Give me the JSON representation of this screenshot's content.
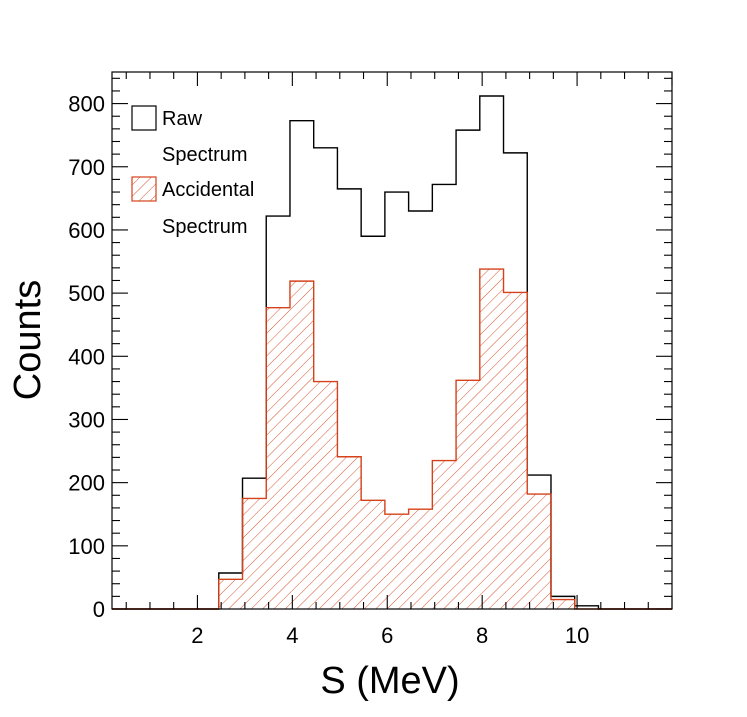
{
  "chart_data": {
    "type": "histogram",
    "xlabel": "S (MeV)",
    "ylabel": "Counts",
    "xlim": [
      0.2,
      12.0
    ],
    "ylim": [
      0,
      850
    ],
    "x_ticks": [
      2,
      4,
      6,
      8,
      10
    ],
    "y_ticks": [
      0,
      100,
      200,
      300,
      400,
      500,
      600,
      700,
      800
    ],
    "bin_edges": [
      0.2,
      0.7,
      1.2,
      1.7,
      2.2,
      2.45,
      2.95,
      3.45,
      3.95,
      4.45,
      4.95,
      5.45,
      5.95,
      6.45,
      6.95,
      7.45,
      7.95,
      8.45,
      8.95,
      9.45,
      9.95,
      10.45,
      10.95,
      11.45,
      12.0
    ],
    "series": [
      {
        "name": "Raw Spectrum",
        "color": "#000000",
        "fill": "none",
        "values": [
          0,
          0,
          0,
          0,
          0,
          57,
          207,
          622,
          773,
          730,
          665,
          590,
          660,
          630,
          672,
          758,
          812,
          722,
          212,
          20,
          5,
          0,
          0,
          0
        ]
      },
      {
        "name": "Accidental Spectrum",
        "color": "#d4411a",
        "fill": "hatched",
        "values": [
          0,
          0,
          0,
          0,
          0,
          47,
          175,
          477,
          519,
          360,
          241,
          172,
          150,
          158,
          235,
          362,
          538,
          501,
          182,
          15,
          0,
          0,
          0,
          0
        ]
      }
    ],
    "legend": {
      "position": "top-left",
      "entries": [
        {
          "lines": [
            "Raw",
            "Spectrum"
          ]
        },
        {
          "lines": [
            "Accidental",
            "Spectrum"
          ]
        }
      ]
    }
  }
}
